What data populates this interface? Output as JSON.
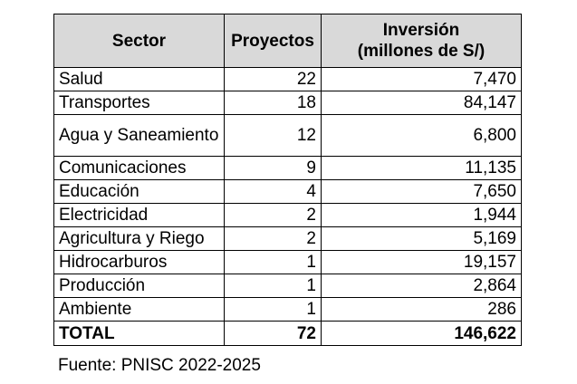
{
  "table": {
    "headers": {
      "sector": "Sector",
      "projects": "Proyectos",
      "investment_line1": "Inversión",
      "investment_line2": "(millones de S/)"
    },
    "rows": [
      {
        "sector": "Salud",
        "projects": "22",
        "investment": "7,470"
      },
      {
        "sector": "Transportes",
        "projects": "18",
        "investment": "84,147"
      },
      {
        "sector": "Agua y Saneamiento",
        "projects": "12",
        "investment": "6,800"
      },
      {
        "sector": "Comunicaciones",
        "projects": "9",
        "investment": "11,135"
      },
      {
        "sector": "Educación",
        "projects": "4",
        "investment": "7,650"
      },
      {
        "sector": "Electricidad",
        "projects": "2",
        "investment": "1,944"
      },
      {
        "sector": "Agricultura y Riego",
        "projects": "2",
        "investment": "5,169"
      },
      {
        "sector": "Hidrocarburos",
        "projects": "1",
        "investment": "19,157"
      },
      {
        "sector": "Producción",
        "projects": "1",
        "investment": "2,864"
      },
      {
        "sector": "Ambiente",
        "projects": "1",
        "investment": "286"
      }
    ],
    "total": {
      "label": "TOTAL",
      "projects": "72",
      "investment": "146,622"
    }
  },
  "source": "Fuente: PNISC 2022-2025"
}
